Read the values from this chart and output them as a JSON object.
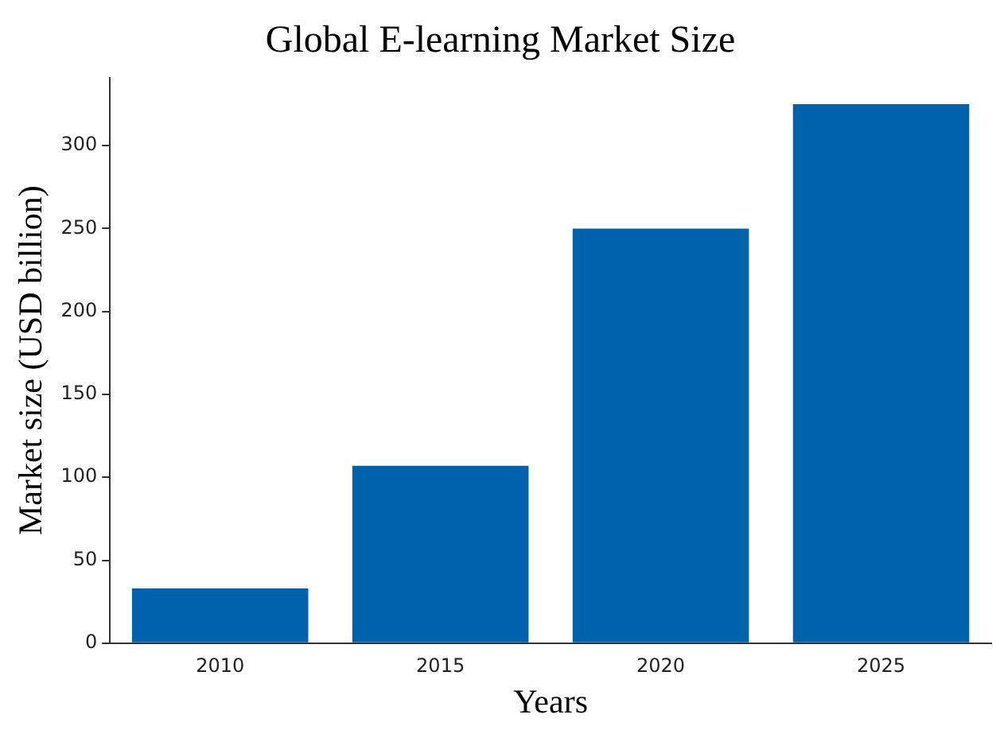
{
  "chart_data": {
    "type": "bar",
    "title": "Global E-learning Market Size",
    "xlabel": "Years",
    "ylabel": "Market size (USD billion)",
    "categories": [
      "2010",
      "2015",
      "2020",
      "2025"
    ],
    "values": [
      33,
      107,
      250,
      325
    ],
    "color": "#0061ad",
    "ylim": [
      0,
      341
    ],
    "yticks": [
      0,
      50,
      100,
      150,
      200,
      250,
      300
    ],
    "grid": false,
    "legend": false
  }
}
